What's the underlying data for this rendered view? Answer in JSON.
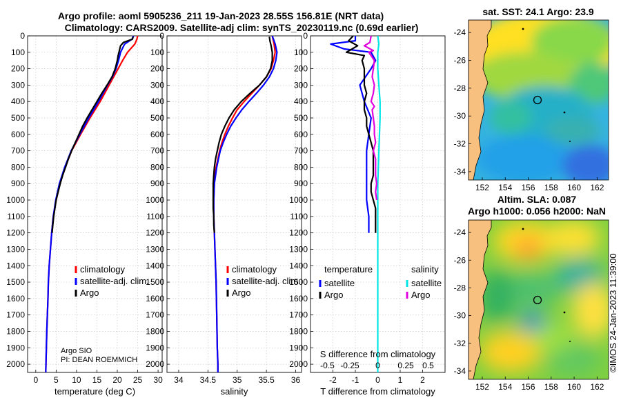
{
  "chart_data": {
    "type": "line",
    "title_line1": "Argo profile: aoml 5905236_211 19-Jan-2023 28.55S 156.81E (NRT data)",
    "title_line2": "Climatology: CARS2009. Satellite-adj clim: synTS_20230119.nc (0.69d earlier)",
    "depth_ticks": [
      "0",
      "100",
      "200",
      "300",
      "400",
      "500",
      "600",
      "700",
      "800",
      "900",
      "1000",
      "1100",
      "1200",
      "1300",
      "1400",
      "1500",
      "1600",
      "1700",
      "1800",
      "1900",
      "2000"
    ],
    "panels": [
      {
        "id": "temperature",
        "xlabel": "temperature (deg C)",
        "xlim": [
          -2,
          31
        ],
        "xticks": [
          0,
          5,
          10,
          15,
          20,
          25,
          30
        ],
        "xtick_labels": [
          "0",
          "5",
          "10",
          "15",
          "20",
          "25",
          "30"
        ],
        "legend": [
          "climatology",
          "satellite-adj. clim.",
          "Argo"
        ],
        "note": [
          "Argo SIO",
          "PI: DEAN ROEMMICH"
        ],
        "series": [
          {
            "name": "climatology",
            "color": "#ff0000",
            "depth": [
              0,
              20,
              50,
              100,
              150,
              200,
              250,
              300,
              400,
              500,
              600,
              700,
              800,
              900,
              1000,
              1100,
              1200,
              1300,
              1400,
              1500,
              1600,
              1800,
              2000,
              2050
            ],
            "value": [
              25,
              24.8,
              24.3,
              22.5,
              21.3,
              20.2,
              19.1,
              18,
              15.8,
              13.3,
              11,
              8.8,
              7.2,
              5.9,
              5.0,
              4.3,
              3.9,
              3.6,
              3.3,
              3.1,
              3.0,
              2.7,
              2.5,
              2.45
            ]
          },
          {
            "name": "satellite-adj. clim.",
            "color": "#0000ff",
            "depth": [
              0,
              20,
              50,
              100,
              150,
              200,
              250,
              300,
              400,
              500,
              600,
              700,
              800,
              900,
              1000,
              1100,
              1200,
              1300,
              1400,
              1500,
              1600,
              1800,
              2000,
              2050
            ],
            "value": [
              24,
              23.6,
              21.8,
              20.8,
              20.3,
              19.7,
              18.8,
              17.6,
              15.4,
              13,
              10.8,
              8.7,
              7.1,
              5.8,
              4.9,
              4.3,
              3.9,
              3.6,
              3.3,
              3.1,
              3.0,
              2.7,
              2.5,
              2.45
            ]
          },
          {
            "name": "Argo",
            "color": "#000000",
            "depth": [
              5,
              20,
              40,
              60,
              90,
              120,
              150,
              200,
              250,
              300,
              350,
              400,
              450,
              500,
              550,
              600,
              650,
              700,
              750,
              800,
              850,
              900,
              950,
              1000,
              1050,
              1100,
              1150,
              1200
            ],
            "value": [
              23.9,
              23.7,
              21.5,
              20.8,
              20.5,
              20.2,
              20.0,
              19.5,
              18.7,
              17.5,
              16.2,
              15.0,
              13.8,
              12.6,
              11.5,
              10.6,
              9.7,
              8.8,
              8.0,
              7.3,
              6.6,
              6.0,
              5.5,
              5.0,
              4.7,
              4.4,
              4.2,
              4.0
            ]
          }
        ]
      },
      {
        "id": "salinity",
        "xlabel": "salinity",
        "xlim": [
          33.8,
          36.1
        ],
        "xticks": [
          34,
          34.5,
          35,
          35.5,
          36
        ],
        "xtick_labels": [
          "34",
          "34.5",
          "35",
          "35.5",
          "36"
        ],
        "legend": [
          "climatology",
          "satellite-adj. clim.",
          "Argo"
        ],
        "series": [
          {
            "name": "climatology",
            "color": "#ff0000",
            "depth": [
              0,
              50,
              100,
              150,
              200,
              250,
              300,
              350,
              400,
              450,
              500,
              550,
              600,
              650,
              700,
              750,
              800,
              850,
              900,
              1000,
              1100,
              1200,
              1300,
              1500,
              1700,
              1900,
              2000,
              2050
            ],
            "value": [
              35.6,
              35.63,
              35.65,
              35.62,
              35.58,
              35.5,
              35.38,
              35.25,
              35.12,
              35.0,
              34.92,
              34.85,
              34.79,
              34.74,
              34.7,
              34.67,
              34.64,
              34.62,
              34.61,
              34.6,
              34.6,
              34.61,
              34.62,
              34.64,
              34.65,
              34.66,
              34.67,
              34.67
            ]
          },
          {
            "name": "satellite-adj. clim.",
            "color": "#0000ff",
            "depth": [
              0,
              50,
              100,
              150,
              200,
              250,
              300,
              350,
              400,
              450,
              500,
              550,
              600,
              650,
              700,
              750,
              800,
              850,
              900,
              1000,
              1100,
              1200,
              1300,
              1500,
              1700,
              1900,
              2000,
              2050
            ],
            "value": [
              35.6,
              35.65,
              35.68,
              35.66,
              35.62,
              35.55,
              35.45,
              35.33,
              35.2,
              35.08,
              34.98,
              34.89,
              34.82,
              34.76,
              34.71,
              34.68,
              34.65,
              34.63,
              34.61,
              34.6,
              34.6,
              34.61,
              34.62,
              34.64,
              34.65,
              34.66,
              34.67,
              34.67
            ]
          },
          {
            "name": "Argo",
            "color": "#000000",
            "depth": [
              5,
              30,
              60,
              100,
              150,
              200,
              250,
              300,
              350,
              400,
              450,
              500,
              550,
              600,
              650,
              700,
              750,
              800,
              850,
              900,
              950,
              1000,
              1050,
              1100,
              1150,
              1200
            ],
            "value": [
              35.55,
              35.56,
              35.58,
              35.6,
              35.6,
              35.57,
              35.5,
              35.38,
              35.22,
              35.07,
              34.95,
              34.86,
              34.79,
              34.73,
              34.69,
              34.66,
              34.63,
              34.61,
              34.6,
              34.59,
              34.59,
              34.59,
              34.59,
              34.6,
              34.6,
              34.61
            ]
          }
        ]
      },
      {
        "id": "difference",
        "xlabel": "T difference from climatology",
        "xlabel_top": "S difference from climatology",
        "xlim": [
          -3,
          3
        ],
        "xticks": [
          -2,
          -1,
          0,
          1,
          2
        ],
        "xtick_labels": [
          "-2",
          "-1",
          "0",
          "1",
          "2"
        ],
        "s_ticks_labels": [
          "-0.5",
          "-0.25",
          "0",
          "0.25",
          "0.5"
        ],
        "s_ticks_T_units": [
          -2,
          -1,
          0,
          1,
          2
        ],
        "legend_left_title": "temperature",
        "legend_right_title": "salinity",
        "legend_left": [
          "satellite",
          "Argo"
        ],
        "legend_right": [
          "satellite",
          "Argo"
        ],
        "series": [
          {
            "name": "T satellite",
            "color": "#0000ff",
            "depth": [
              0,
              30,
              50,
              80,
              100,
              150,
              200,
              300,
              400,
              500,
              600,
              700,
              800,
              900,
              1000,
              1100,
              1200
            ],
            "value": [
              -1,
              -1.0,
              -2.1,
              -1.5,
              -0.3,
              -0.1,
              -0.3,
              -0.8,
              -0.6,
              -0.3,
              -0.4,
              -0.5,
              -0.5,
              -0.5,
              -0.5,
              -0.4,
              -0.4
            ]
          },
          {
            "name": "T Argo",
            "color": "#000000",
            "depth": [
              0,
              30,
              60,
              100,
              120,
              150,
              200,
              250,
              300,
              350,
              400,
              450,
              500,
              550,
              600,
              650,
              700,
              750,
              800,
              850,
              900,
              950,
              1000,
              1050,
              1100,
              1150,
              1200
            ],
            "value": [
              -1.1,
              -1.3,
              -0.9,
              -1.4,
              -0.6,
              -0.7,
              -0.6,
              -0.6,
              -0.6,
              -0.5,
              -0.6,
              -0.6,
              -0.5,
              -0.5,
              -0.4,
              -0.3,
              -0.2,
              -0.2,
              -0.2,
              -0.2,
              -0.3,
              -0.3,
              -0.2,
              -0.1,
              -0.1,
              -0.1,
              -0.1
            ]
          },
          {
            "name": "S satellite",
            "color": "#00e6e6",
            "depth": [
              0,
              50,
              100,
              200,
              300,
              400,
              500,
              700,
              900,
              1100,
              1300,
              1500,
              1700,
              1900,
              2050
            ],
            "value": [
              0,
              0.05,
              0,
              0,
              0.05,
              0.1,
              0.1,
              0.05,
              0,
              0,
              0,
              0,
              0,
              0,
              0
            ]
          },
          {
            "name": "S Argo",
            "color": "#e000e0",
            "depth": [
              0,
              40,
              60,
              90,
              100,
              150,
              200,
              250,
              300,
              350,
              400,
              430,
              450,
              500,
              550,
              600,
              650,
              700,
              750,
              800,
              850,
              900,
              950,
              1000
            ],
            "value": [
              -0.3,
              -0.35,
              -0.6,
              -0.2,
              -0.4,
              -0.15,
              -0.2,
              -0.25,
              -0.15,
              -0.2,
              -0.3,
              -0.15,
              -0.25,
              -0.2,
              -0.15,
              -0.15,
              -0.1,
              -0.2,
              -0.1,
              -0.1,
              -0.1,
              -0.05,
              -0.1,
              -0.05
            ]
          }
        ]
      }
    ],
    "maps": [
      {
        "id": "sst",
        "title": "sat. SST: 24.1 Argo: 23.9",
        "lon_ticks": [
          "152",
          "154",
          "156",
          "158",
          "160",
          "162"
        ],
        "lat_ticks": [
          "-24",
          "-26",
          "-28",
          "-30",
          "-32",
          "-34"
        ]
      },
      {
        "id": "sla",
        "title_line1": "Altim. SLA: 0.087",
        "title_line2": "Argo h1000: 0.056 h2000: NaN",
        "lon_ticks": [
          "152",
          "154",
          "156",
          "158",
          "160",
          "162"
        ],
        "lat_ticks": [
          "-24",
          "-26",
          "-28",
          "-30",
          "-32",
          "-34"
        ]
      }
    ],
    "watermark": "©IMOS 24-Jan-2023 11:39:00"
  }
}
